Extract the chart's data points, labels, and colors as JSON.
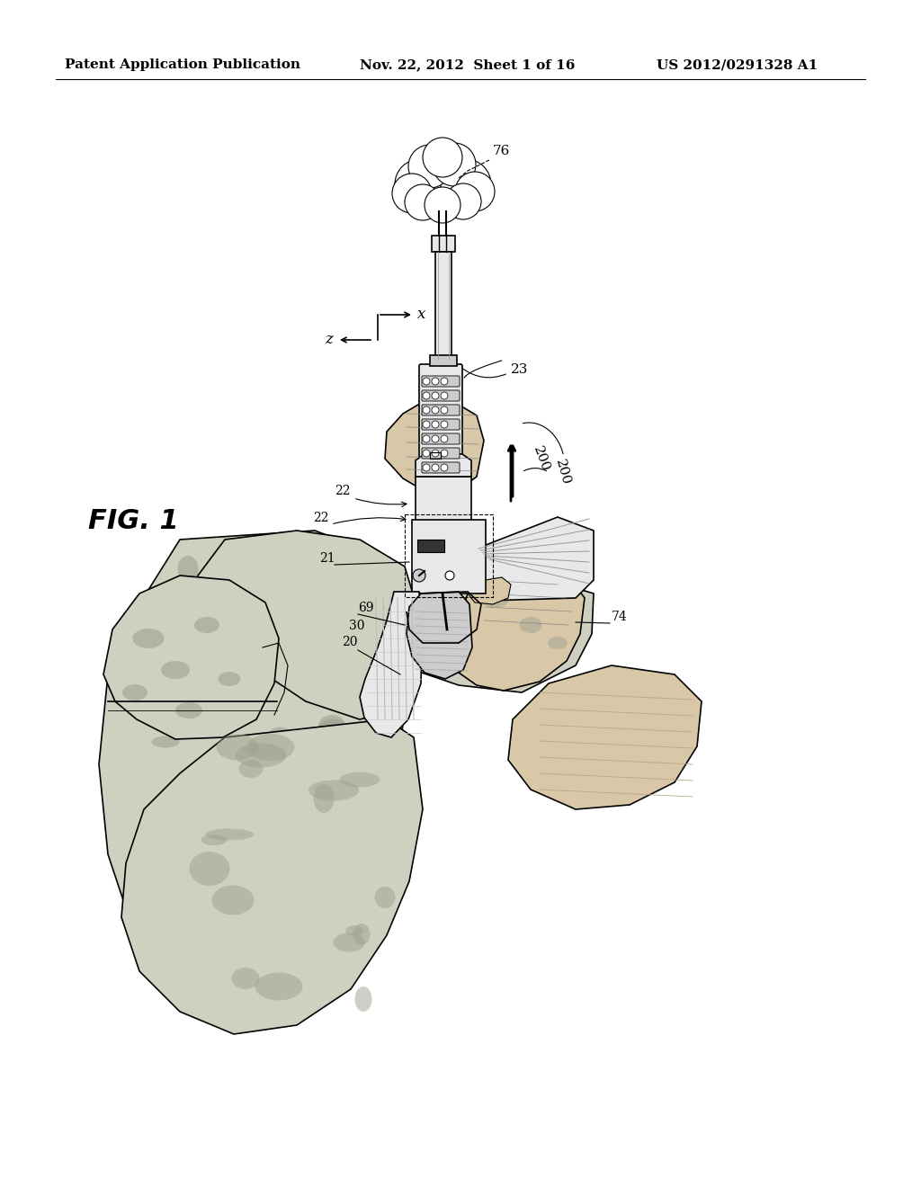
{
  "bg_color": "#ffffff",
  "header_left": "Patent Application Publication",
  "header_center": "Nov. 22, 2012  Sheet 1 of 16",
  "header_right": "US 2012/0291328 A1",
  "fig_label": "FIG. 1",
  "line_color": "#000000",
  "gray_light": "#e8e8e8",
  "gray_mid": "#cccccc",
  "gray_dark": "#aaaaaa",
  "skin_color": "#d8c8a8",
  "camo_base": "#d0d0c0",
  "camo_dark": "#a0a090"
}
